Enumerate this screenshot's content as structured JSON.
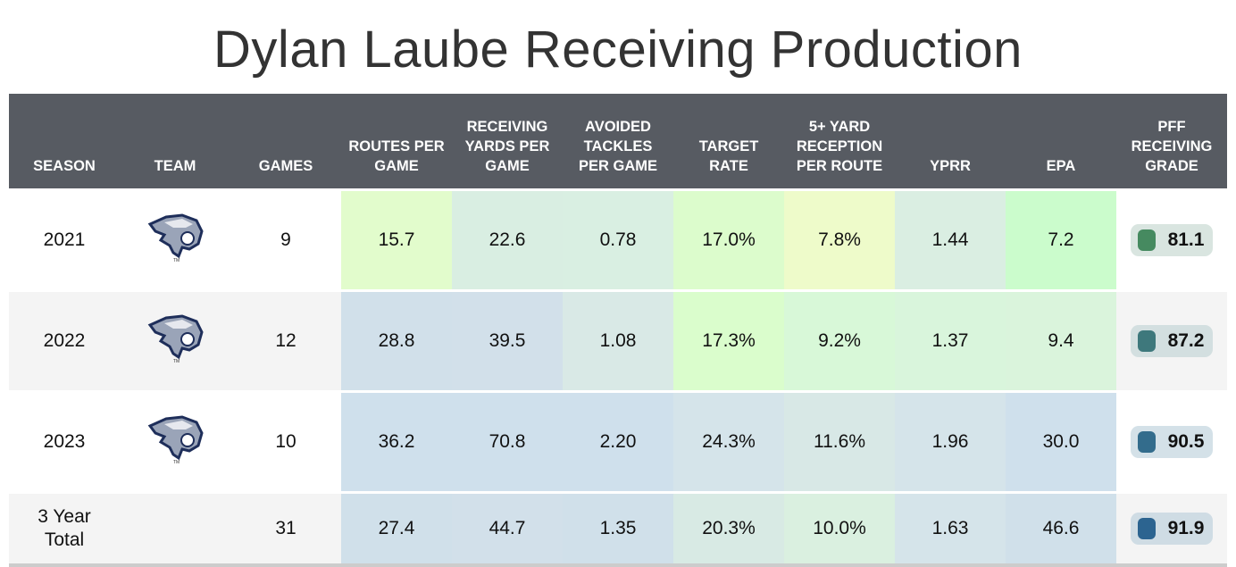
{
  "chart_data": {
    "type": "table",
    "title": "Dylan Laube Receiving Production",
    "columns": [
      "SEASON",
      "TEAM",
      "GAMES",
      "ROUTES PER GAME",
      "RECEIVING YARDS PER GAME",
      "AVOIDED TACKLES PER GAME",
      "TARGET RATE",
      "5+ YARD RECEPTION PER ROUTE",
      "YPRR",
      "EPA",
      "PFF RECEIVING GRADE"
    ],
    "rows": [
      {
        "season": "2021",
        "team_icon": "wildcat-logo-icon",
        "games": "9",
        "stats": [
          "15.7",
          "22.6",
          "0.78",
          "17.0%",
          "7.8%",
          "1.44",
          "7.2"
        ],
        "colors": [
          "#e2fccc",
          "#d9eee2",
          "#d9efe2",
          "#dcfccc",
          "#eefbca",
          "#daeee2",
          "#cbfccc"
        ],
        "grade": "81.1",
        "grade_color": "#468a60",
        "grade_bg": "#d9e5e0"
      },
      {
        "season": "2022",
        "team_icon": "wildcat-logo-icon",
        "games": "12",
        "stats": [
          "28.8",
          "39.5",
          "1.08",
          "17.3%",
          "9.2%",
          "1.37",
          "9.4"
        ],
        "colors": [
          "#d1e0ea",
          "#d2e0ea",
          "#d9e9e6",
          "#dafdcc",
          "#d8f8d8",
          "#d9f5dc",
          "#daf4dc"
        ],
        "grade": "87.2",
        "grade_color": "#3e787c",
        "grade_bg": "#d3dfe0"
      },
      {
        "season": "2023",
        "team_icon": "wildcat-logo-icon",
        "games": "10",
        "stats": [
          "36.2",
          "70.8",
          "2.20",
          "24.3%",
          "11.6%",
          "1.96",
          "30.0"
        ],
        "colors": [
          "#cfe0ec",
          "#cfe0ec",
          "#cfe0ec",
          "#d5e4ea",
          "#d8e8e6",
          "#d5e4ea",
          "#cfe0ec"
        ],
        "grade": "90.5",
        "grade_color": "#336c8c",
        "grade_bg": "#d4e1e8"
      },
      {
        "season": "3 Year Total",
        "team_icon": "",
        "games": "31",
        "stats": [
          "27.4",
          "44.7",
          "1.35",
          "20.3%",
          "10.0%",
          "1.63",
          "46.6"
        ],
        "colors": [
          "#d0e0ea",
          "#d2e0ea",
          "#d0e0ea",
          "#d8eae4",
          "#daf0e0",
          "#d5e4ea",
          "#d0e0ea"
        ],
        "grade": "91.9",
        "grade_color": "#2c6490",
        "grade_bg": "#cfdce4"
      }
    ]
  }
}
